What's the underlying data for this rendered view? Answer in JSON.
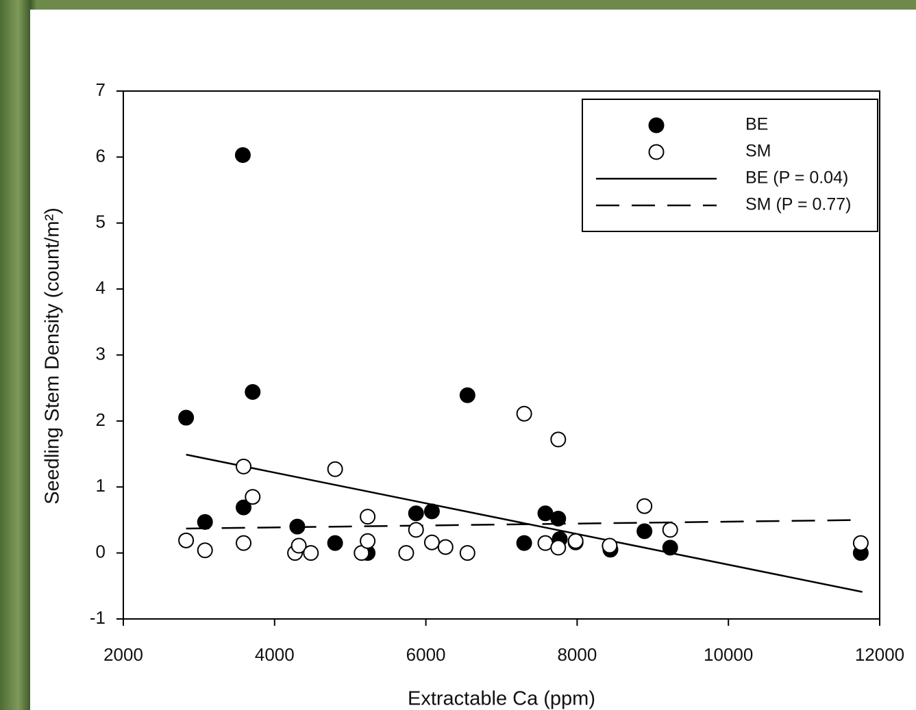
{
  "chart_data": {
    "type": "scatter",
    "xlabel": "Extractable Ca (ppm)",
    "ylabel": "Seedling Stem Density (count/m²)",
    "xlim": [
      2000,
      12000
    ],
    "xticks": [
      2000,
      4000,
      6000,
      8000,
      10000,
      12000
    ],
    "ylim": [
      -1,
      7
    ],
    "yticks": [
      -1,
      0,
      1,
      2,
      3,
      4,
      5,
      6,
      7
    ],
    "legend": "upper right",
    "series": [
      {
        "name": "BE",
        "color": "#000000",
        "marker": "filled",
        "x": [
          2830,
          3080,
          3580,
          3590,
          3710,
          4300,
          4800,
          5230,
          5870,
          6080,
          6550,
          7300,
          7580,
          7750,
          7770,
          7980,
          8440,
          8890,
          9230,
          11750
        ],
        "values": [
          2.05,
          0.47,
          6.03,
          0.69,
          2.44,
          0.4,
          0.15,
          0,
          0.6,
          0.63,
          2.39,
          0.15,
          0.6,
          0.52,
          0.21,
          0.16,
          0.05,
          0.33,
          0.08,
          0
        ]
      },
      {
        "name": "SM",
        "color": "#000000",
        "marker": "open",
        "x": [
          2830,
          3080,
          3590,
          3590,
          3710,
          4270,
          4320,
          4480,
          4800,
          5150,
          5230,
          5230,
          5740,
          5870,
          6080,
          6260,
          6550,
          7300,
          7580,
          7750,
          7750,
          7980,
          8430,
          8890,
          9230,
          11750
        ],
        "values": [
          0.19,
          0.04,
          1.31,
          0.15,
          0.85,
          0,
          0.11,
          0,
          1.27,
          0,
          0.55,
          0.18,
          0,
          0.35,
          0.16,
          0.09,
          0,
          2.11,
          0.15,
          1.72,
          0.08,
          0.18,
          0.11,
          0.71,
          0.35,
          0.15
        ]
      }
    ],
    "lines": [
      {
        "name": "BE (P = 0.04)",
        "color": "#000000",
        "dash": "solid",
        "x": [
          2830,
          11770
        ],
        "values": [
          1.49,
          -0.59
        ]
      },
      {
        "name": "SM (P = 0.77)",
        "color": "#000000",
        "dash": "dashed",
        "x": [
          2830,
          11770
        ],
        "values": [
          0.37,
          0.5
        ]
      }
    ]
  }
}
